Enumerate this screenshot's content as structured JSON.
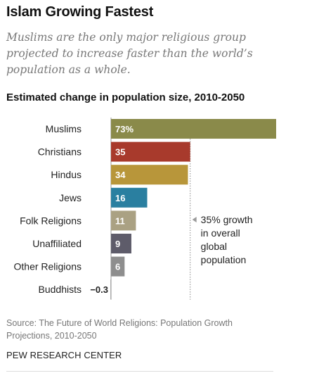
{
  "title": "Islam Growing Fastest",
  "subtitle": "Muslims are the only major religious group projected to increase faster than the world’s population as a whole.",
  "source": "Source: The Future of World Religions: Population Growth Projections, 2010-2050",
  "org": "PEW RESEARCH CENTER",
  "chart_data": {
    "type": "bar",
    "orientation": "horizontal",
    "title": "Estimated change in population size, 2010-2050",
    "categories": [
      "Muslims",
      "Christians",
      "Hindus",
      "Jews",
      "Folk Religions",
      "Unaffiliated",
      "Other Religions",
      "Buddhists"
    ],
    "values": [
      73,
      35,
      34,
      16,
      11,
      9,
      6,
      -0.3
    ],
    "value_labels": [
      "73%",
      "35",
      "34",
      "16",
      "11",
      "9",
      "6",
      "-0.3"
    ],
    "colors": [
      "#8a8a4a",
      "#a83a2c",
      "#b8963a",
      "#2a7fa0",
      "#aaa183",
      "#5e5c6a",
      "#8e8e8e",
      "#aaaaaa"
    ],
    "reference_line": {
      "value": 35,
      "label_lines": [
        "35% growth",
        "in overall",
        "global",
        "population"
      ]
    },
    "xlim": [
      -0.3,
      73
    ]
  }
}
